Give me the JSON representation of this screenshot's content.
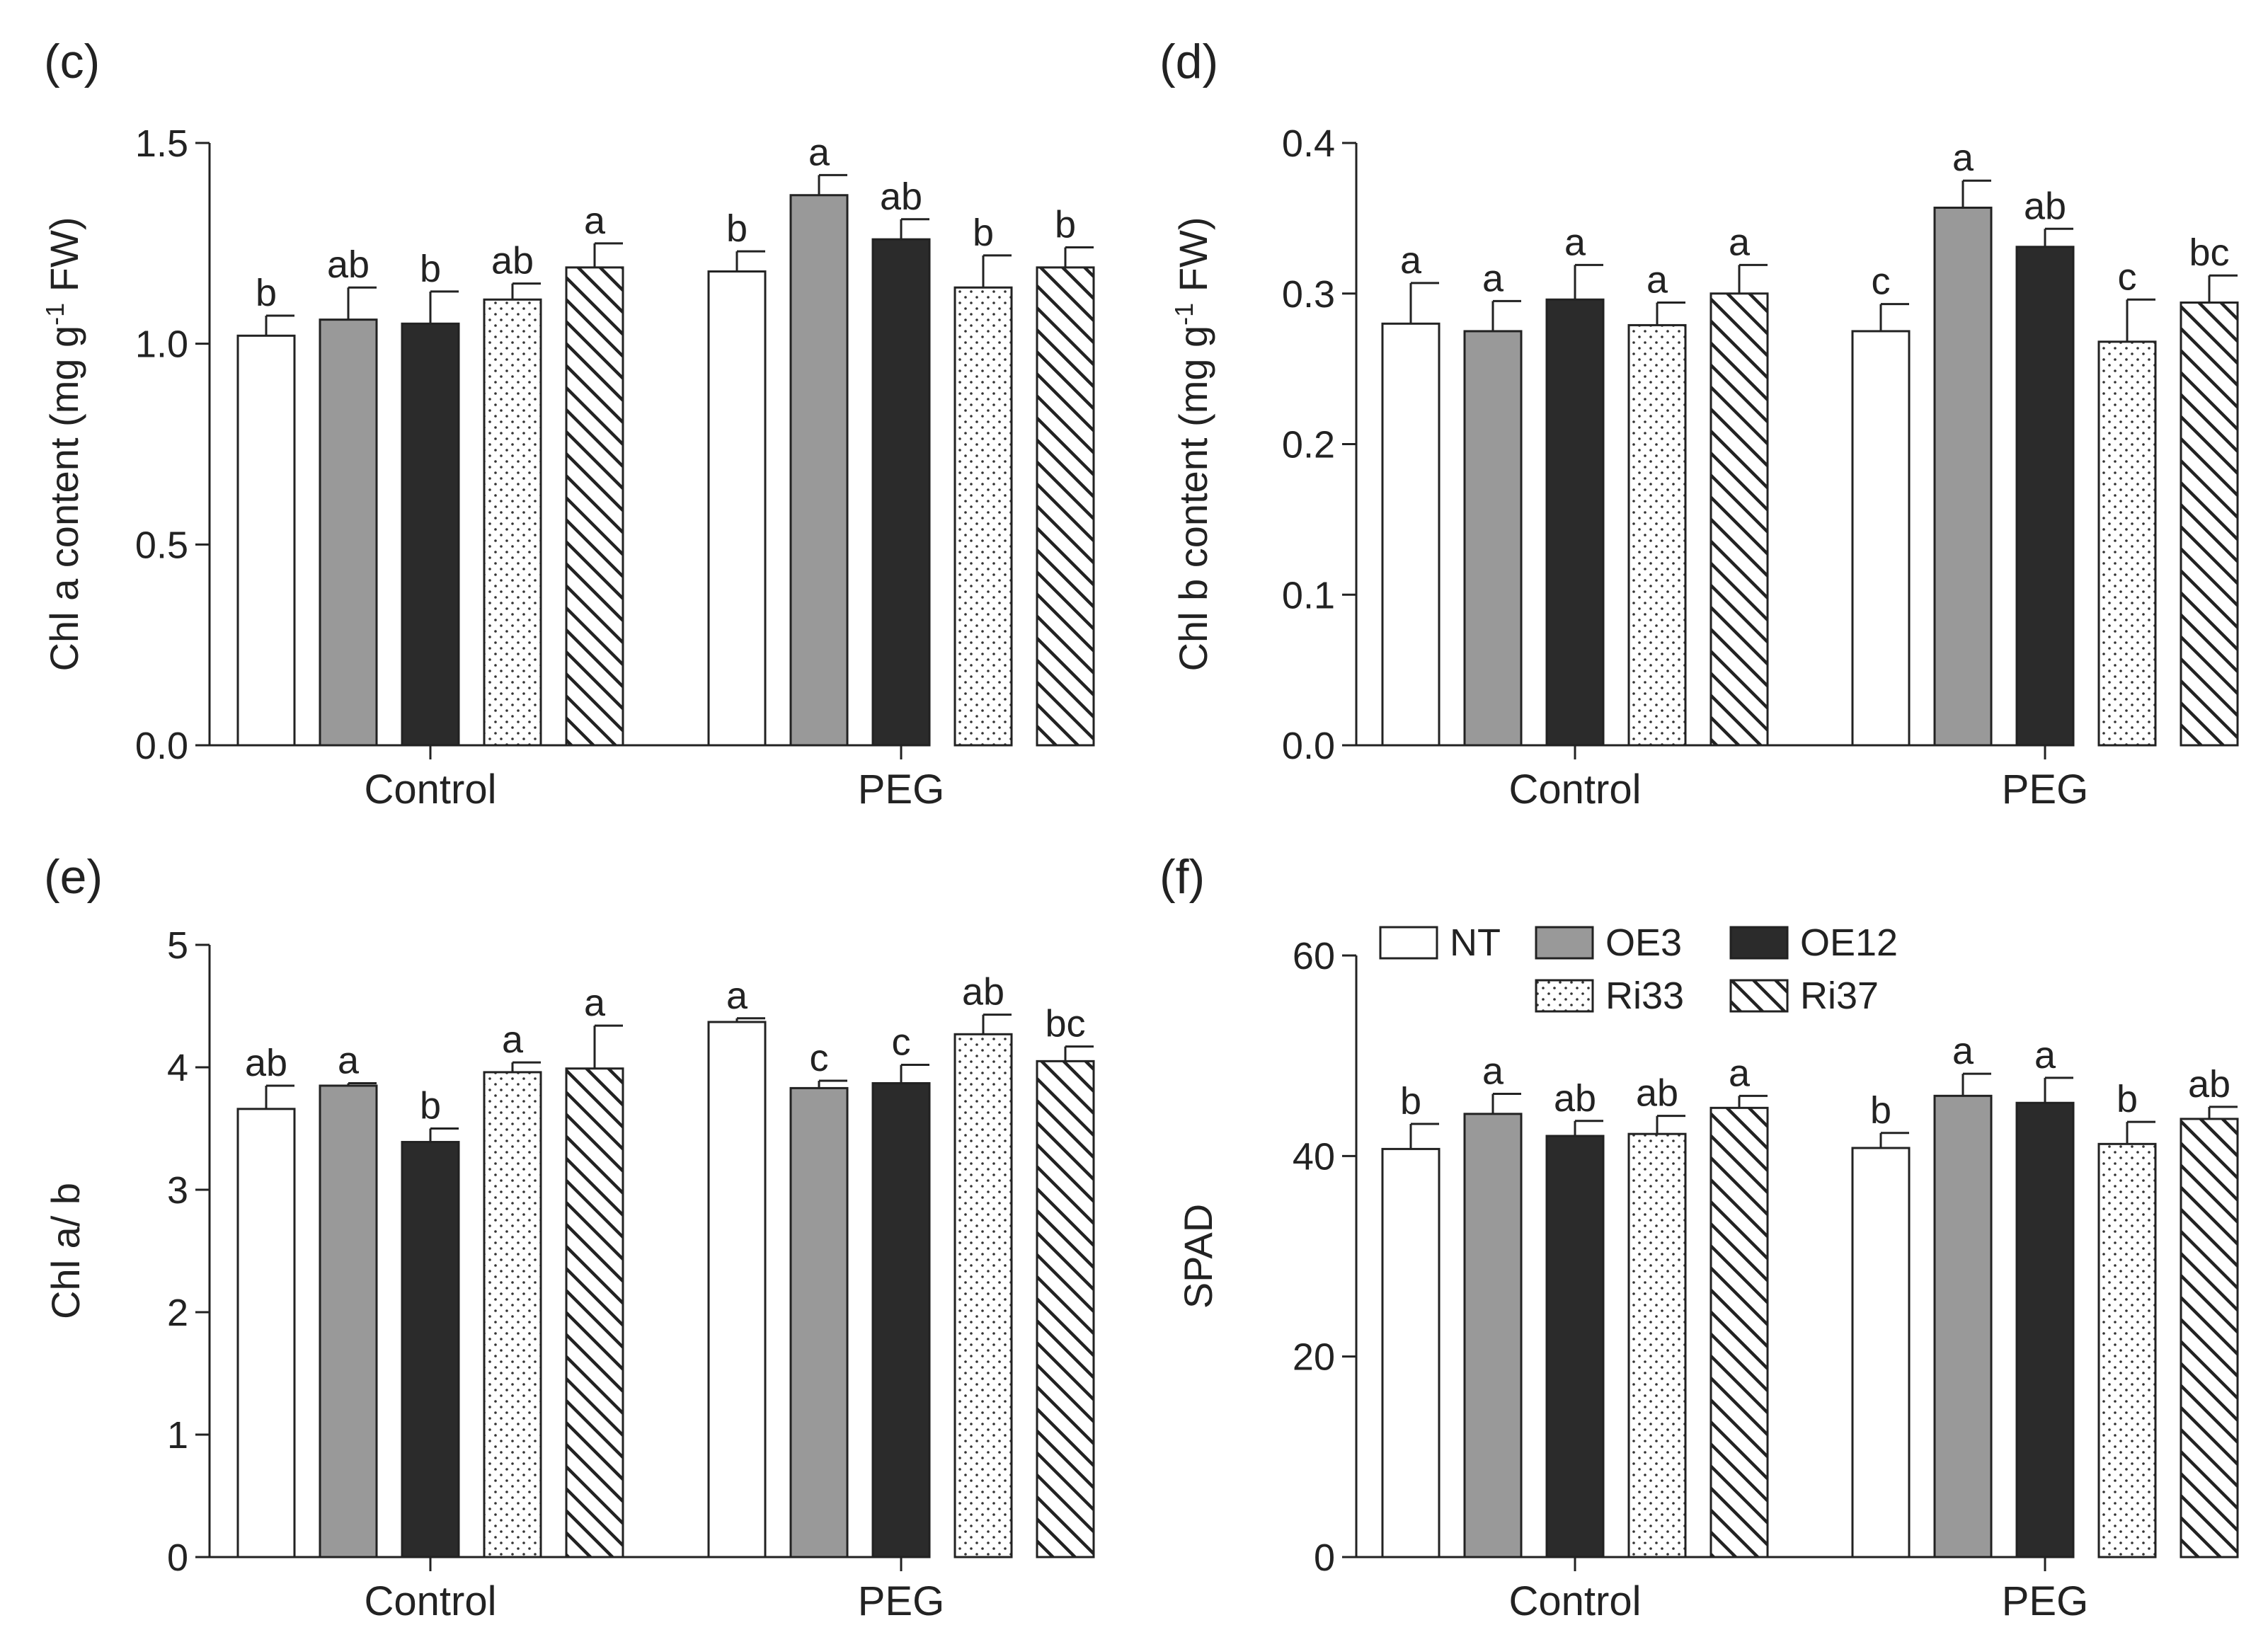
{
  "chart_data": [
    {
      "type": "bar",
      "panel_label": "(c)",
      "categories": [
        "Control",
        "PEG"
      ],
      "ylabel": "Chl a content (mg g-1 FW)",
      "ylabel_parts": [
        "Chl a content (mg g",
        "-1",
        " FW)"
      ],
      "ylim": [
        0,
        1.5
      ],
      "yticks": [
        0.0,
        0.5,
        1.0,
        1.5
      ],
      "ytick_labels": [
        "0.0",
        "0.5",
        "1.0",
        "1.5"
      ],
      "series": [
        {
          "name": "NT",
          "values": [
            1.02,
            1.18
          ],
          "errors": [
            0.05,
            0.05
          ],
          "letters": [
            "b",
            "b"
          ]
        },
        {
          "name": "OE3",
          "values": [
            1.06,
            1.37
          ],
          "errors": [
            0.08,
            0.05
          ],
          "letters": [
            "ab",
            "a"
          ]
        },
        {
          "name": "OE12",
          "values": [
            1.05,
            1.26
          ],
          "errors": [
            0.08,
            0.05
          ],
          "letters": [
            "b",
            "ab"
          ]
        },
        {
          "name": "Ri33",
          "values": [
            1.11,
            1.14
          ],
          "errors": [
            0.04,
            0.08
          ],
          "letters": [
            "ab",
            "b"
          ]
        },
        {
          "name": "Ri37",
          "values": [
            1.19,
            1.19
          ],
          "errors": [
            0.06,
            0.05
          ],
          "letters": [
            "a",
            "b"
          ]
        }
      ]
    },
    {
      "type": "bar",
      "panel_label": "(d)",
      "categories": [
        "Control",
        "PEG"
      ],
      "ylabel": "Chl b content (mg g-1 FW)",
      "ylabel_parts": [
        "Chl b content (mg g",
        "-1",
        " FW)"
      ],
      "ylim": [
        0,
        0.4
      ],
      "yticks": [
        0.0,
        0.1,
        0.2,
        0.3,
        0.4
      ],
      "ytick_labels": [
        "0.0",
        "0.1",
        "0.2",
        "0.3",
        "0.4"
      ],
      "series": [
        {
          "name": "NT",
          "values": [
            0.28,
            0.275
          ],
          "errors": [
            0.027,
            0.018
          ],
          "letters": [
            "a",
            "c"
          ]
        },
        {
          "name": "OE3",
          "values": [
            0.275,
            0.357
          ],
          "errors": [
            0.02,
            0.018
          ],
          "letters": [
            "a",
            "a"
          ]
        },
        {
          "name": "OE12",
          "values": [
            0.296,
            0.331
          ],
          "errors": [
            0.023,
            0.012
          ],
          "letters": [
            "a",
            "ab"
          ]
        },
        {
          "name": "Ri33",
          "values": [
            0.279,
            0.268
          ],
          "errors": [
            0.015,
            0.028
          ],
          "letters": [
            "a",
            "c"
          ]
        },
        {
          "name": "Ri37",
          "values": [
            0.3,
            0.294
          ],
          "errors": [
            0.019,
            0.018
          ],
          "letters": [
            "a",
            "bc"
          ]
        }
      ]
    },
    {
      "type": "bar",
      "panel_label": "(e)",
      "categories": [
        "Control",
        "PEG"
      ],
      "ylabel": "Chl a/ b",
      "ylabel_parts": [
        "Chl a/ b"
      ],
      "ylim": [
        0,
        5
      ],
      "yticks": [
        0,
        1,
        2,
        3,
        4,
        5
      ],
      "ytick_labels": [
        "0",
        "1",
        "2",
        "3",
        "4",
        "5"
      ],
      "series": [
        {
          "name": "NT",
          "values": [
            3.66,
            4.37
          ],
          "errors": [
            0.19,
            0.03
          ],
          "letters": [
            "ab",
            "a"
          ]
        },
        {
          "name": "OE3",
          "values": [
            3.85,
            3.83
          ],
          "errors": [
            0.02,
            0.06
          ],
          "letters": [
            "a",
            "c"
          ]
        },
        {
          "name": "OE12",
          "values": [
            3.39,
            3.87
          ],
          "errors": [
            0.11,
            0.15
          ],
          "letters": [
            "b",
            "c"
          ]
        },
        {
          "name": "Ri33",
          "values": [
            3.96,
            4.27
          ],
          "errors": [
            0.08,
            0.16
          ],
          "letters": [
            "a",
            "ab"
          ]
        },
        {
          "name": "Ri37",
          "values": [
            3.99,
            4.05
          ],
          "errors": [
            0.35,
            0.12
          ],
          "letters": [
            "a",
            "bc"
          ]
        }
      ]
    },
    {
      "type": "bar",
      "panel_label": "(f)",
      "categories": [
        "Control",
        "PEG"
      ],
      "ylabel": "SPAD",
      "ylabel_parts": [
        "SPAD"
      ],
      "ylim": [
        0,
        60
      ],
      "yticks": [
        0,
        20,
        40,
        60
      ],
      "ytick_labels": [
        "0",
        "20",
        "40",
        "60"
      ],
      "legend": "top-left",
      "legend_entries": [
        "NT",
        "OE3",
        "OE12",
        "Ri33",
        "Ri37"
      ],
      "series": [
        {
          "name": "NT",
          "values": [
            40.7,
            40.8
          ],
          "errors": [
            2.5,
            1.5
          ],
          "letters": [
            "b",
            "b"
          ]
        },
        {
          "name": "OE3",
          "values": [
            44.2,
            46.0
          ],
          "errors": [
            2.0,
            2.2
          ],
          "letters": [
            "a",
            "a"
          ]
        },
        {
          "name": "OE12",
          "values": [
            42.0,
            45.3
          ],
          "errors": [
            1.5,
            2.5
          ],
          "letters": [
            "ab",
            "a"
          ]
        },
        {
          "name": "Ri33",
          "values": [
            42.2,
            41.2
          ],
          "errors": [
            1.8,
            2.2
          ],
          "letters": [
            "ab",
            "b"
          ]
        },
        {
          "name": "Ri37",
          "values": [
            44.8,
            43.7
          ],
          "errors": [
            1.2,
            1.2
          ],
          "letters": [
            "a",
            "ab"
          ]
        }
      ]
    }
  ],
  "series_styles": {
    "NT": {
      "fill": "#ffffff",
      "pattern": "none"
    },
    "OE3": {
      "fill": "#999999",
      "pattern": "none"
    },
    "OE12": {
      "fill": "#2b2b2b",
      "pattern": "none"
    },
    "Ri33": {
      "fill": "#ffffff",
      "pattern": "dots"
    },
    "Ri37": {
      "fill": "#ffffff",
      "pattern": "diagonal-hatch"
    }
  }
}
